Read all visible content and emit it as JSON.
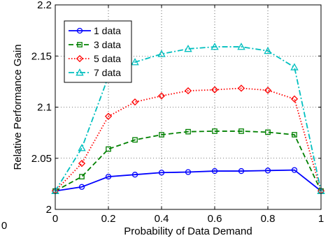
{
  "chart_data": {
    "type": "line",
    "title": "",
    "xlabel": "Probability of Data Demand",
    "ylabel": "Relative Performance Gain",
    "xlim": [
      0,
      1
    ],
    "ylim": [
      2,
      2.2
    ],
    "x_ticks": [
      0,
      0.2,
      0.4,
      0.6,
      0.8,
      1
    ],
    "x_tick_labels": [
      "0",
      "0.2",
      "0.4",
      "0.6",
      "0.8",
      "1"
    ],
    "y_ticks": [
      2,
      2.05,
      2.1,
      2.15,
      2.2
    ],
    "y_tick_labels": [
      "2",
      "2.05",
      "2.1",
      "2.15",
      "2.2"
    ],
    "grid": true,
    "legend_position": "top-left",
    "x": [
      0,
      0.1,
      0.2,
      0.3,
      0.4,
      0.5,
      0.6,
      0.7,
      0.8,
      0.9,
      1.0
    ],
    "series": [
      {
        "name": "1 data",
        "color": "#0000ff",
        "line_style": "solid",
        "marker": "circle",
        "values": [
          2.018,
          2.022,
          2.032,
          2.034,
          2.036,
          2.0365,
          2.0375,
          2.0375,
          2.038,
          2.0385,
          2.018
        ]
      },
      {
        "name": "3 data",
        "color": "#008000",
        "line_style": "dashed",
        "marker": "square",
        "values": [
          2.018,
          2.032,
          2.059,
          2.068,
          2.073,
          2.076,
          2.0765,
          2.0765,
          2.0755,
          2.073,
          2.018
        ]
      },
      {
        "name": "5 data",
        "color": "#ff0000",
        "line_style": "dotted",
        "marker": "diamond",
        "values": [
          2.018,
          2.045,
          2.091,
          2.105,
          2.111,
          2.116,
          2.117,
          2.1185,
          2.1165,
          2.108,
          2.018
        ]
      },
      {
        "name": "7 data",
        "color": "#00bfbf",
        "line_style": "dashdot",
        "marker": "triangle",
        "values": [
          2.018,
          2.06,
          2.13,
          2.144,
          2.152,
          2.157,
          2.159,
          2.159,
          2.155,
          2.139,
          2.018
        ]
      }
    ],
    "extra_text": "0"
  }
}
